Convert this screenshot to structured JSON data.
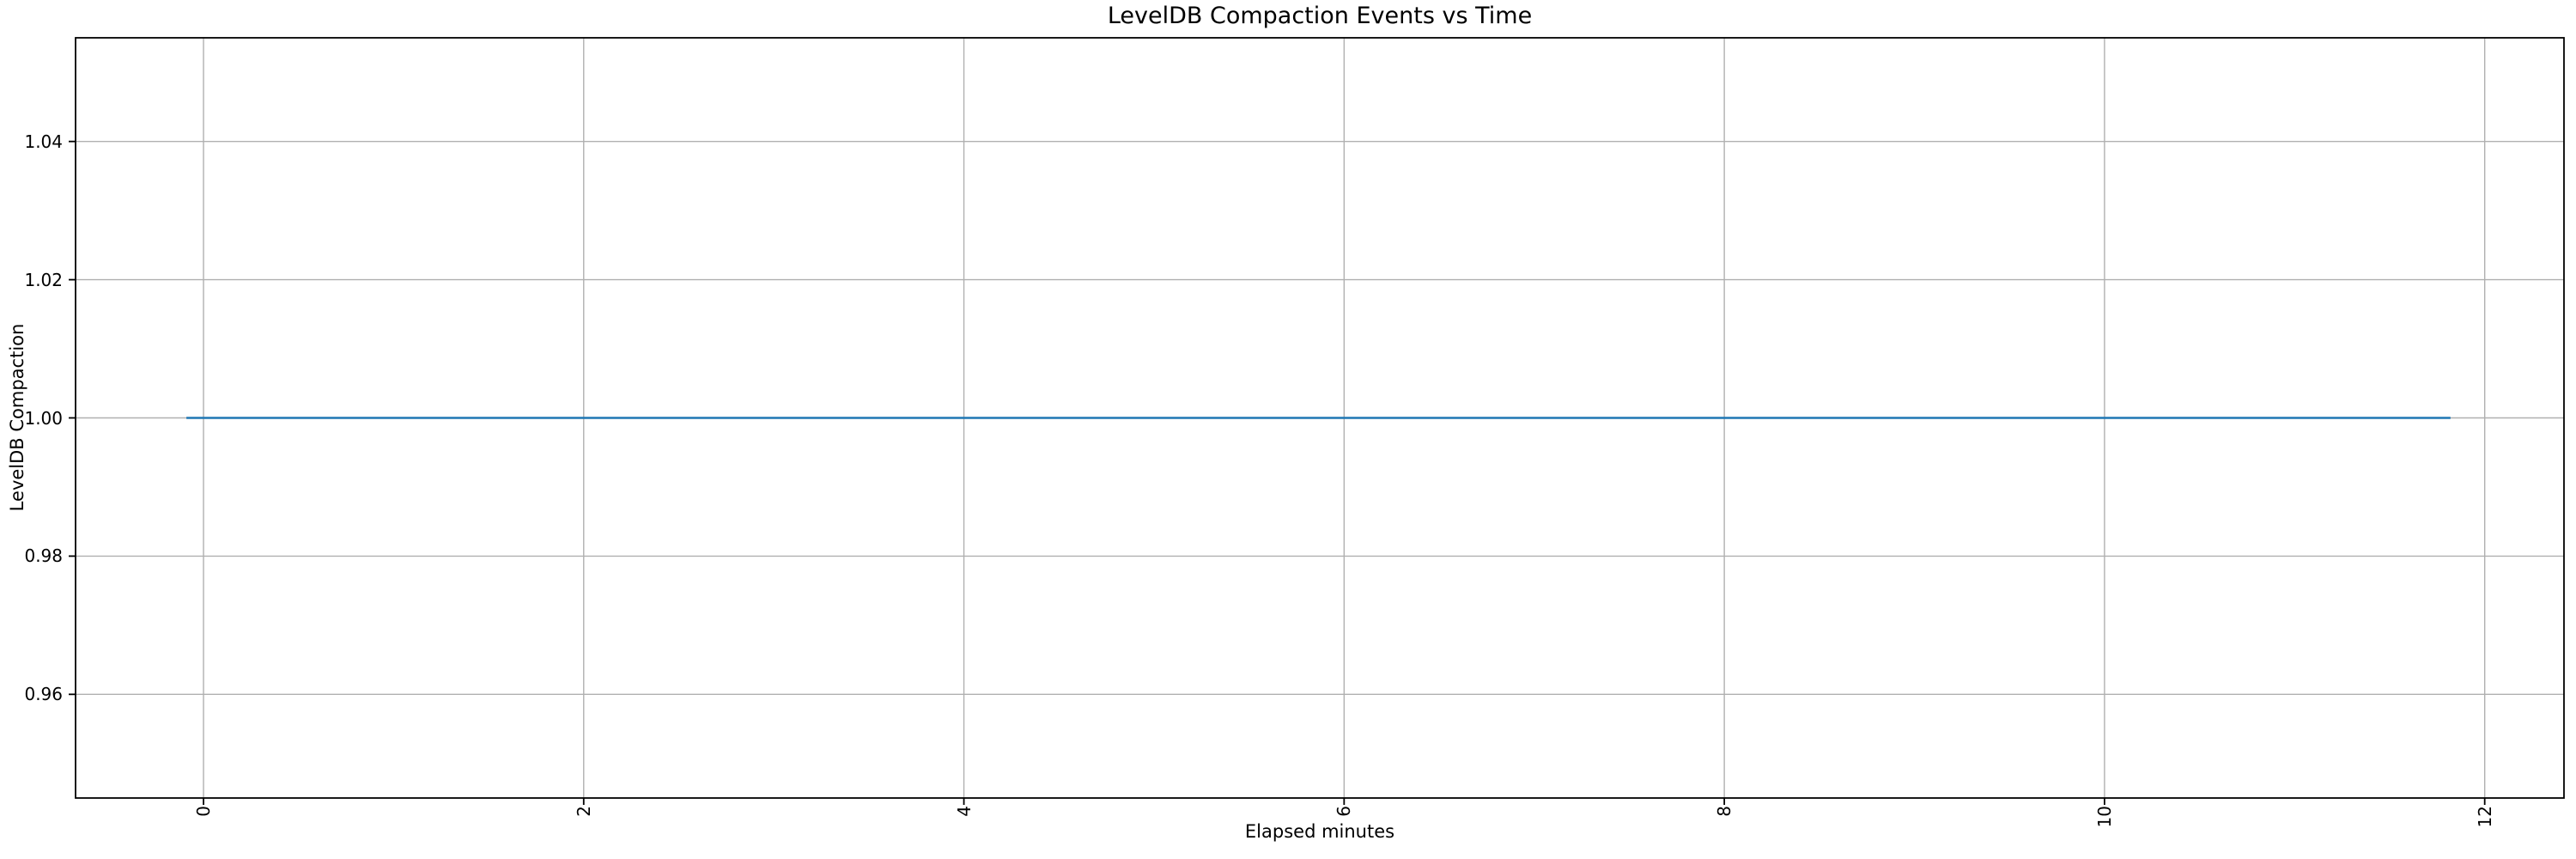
{
  "figure": {
    "background": "#ffffff",
    "text_color": "#000000"
  },
  "chart_data": {
    "type": "line",
    "title": "LevelDB Compaction Events vs Time",
    "xlabel": "Elapsed minutes",
    "ylabel": "LevelDB Compaction",
    "x_ticks": [
      0,
      2,
      4,
      6,
      8,
      10,
      12
    ],
    "x_tick_labels": [
      "0",
      "2",
      "4",
      "6",
      "8",
      "10",
      "12"
    ],
    "x_tick_rotation_deg": 90,
    "y_ticks": [
      0.96,
      0.98,
      1.0,
      1.02,
      1.04
    ],
    "y_tick_labels": [
      "0.96",
      "0.98",
      "1.00",
      "1.02",
      "1.04"
    ],
    "xlim": [
      -0.673,
      12.417
    ],
    "ylim": [
      0.945,
      1.055
    ],
    "grid": true,
    "grid_color": "#b0b0b0",
    "spine_color": "#000000",
    "legend": "none",
    "series": [
      {
        "name": "LevelDB Compaction",
        "color": "#1f77b4",
        "constant_value": 1.0,
        "x": [
          -0.09,
          11.82
        ],
        "y": [
          1.0,
          1.0
        ]
      }
    ]
  }
}
